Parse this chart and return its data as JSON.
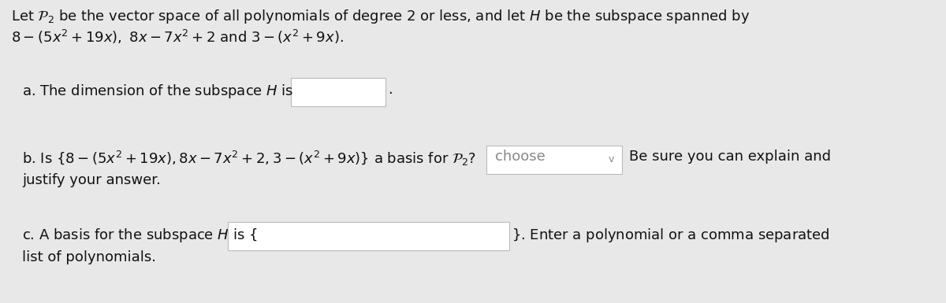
{
  "bg_color": "#e8e8e8",
  "text_color": "#111111",
  "box_color": "#ffffff",
  "box_edge_color": "#bbbbbb",
  "line1": "Let $\\mathcal{P}_2$ be the vector space of all polynomials of degree 2 or less, and let $H$ be the subspace spanned by",
  "line2": "$8-(5x^2+19x),\\ 8x-7x^2+2$ and $3-(x^2+9x).$",
  "part_a_label": "a. The dimension of the subspace $H$ is",
  "part_a_suffix": ".",
  "part_b_label": "b. Is $\\{8-(5x^2+19x), 8x-7x^2+2, 3-(x^2+9x)\\}$ a basis for $\\mathcal{P}_2$?",
  "part_b_choose": "choose",
  "part_b_suffix": "Be sure you can explain and",
  "part_b_line2": "justify your answer.",
  "part_c_label": "c. A basis for the subspace $H$ is $\\{$",
  "part_c_suffix": "$\\}$. Enter a polynomial or a comma separated",
  "part_c_line2": "list of polynomials.",
  "font_size": 13.0,
  "choose_color": "#888888"
}
